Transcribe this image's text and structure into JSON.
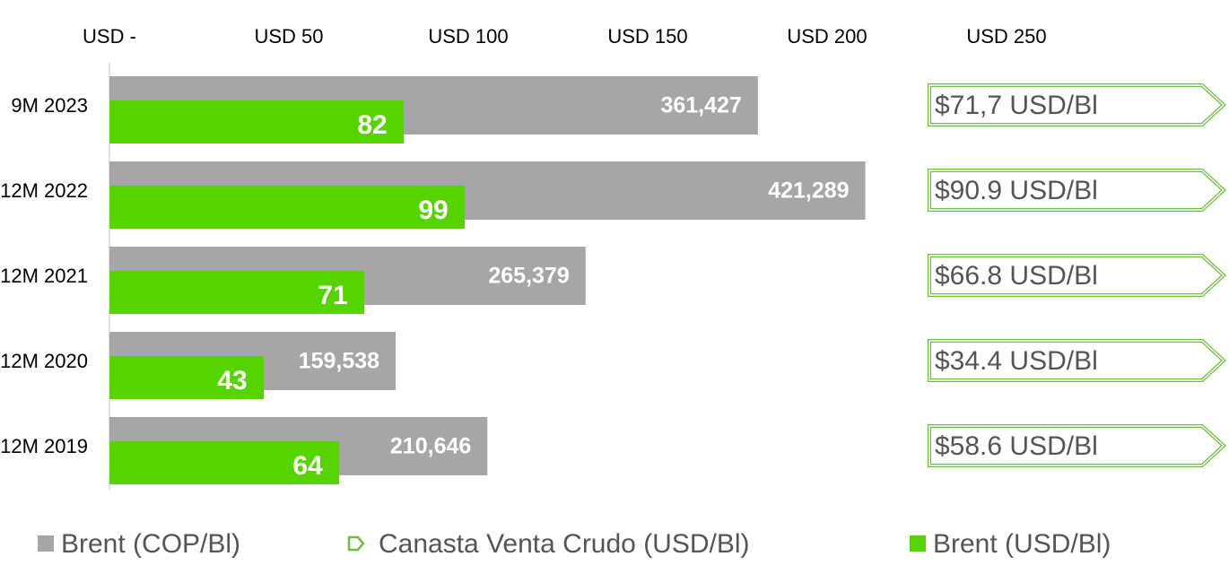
{
  "chart_data": {
    "type": "bar",
    "orientation": "horizontal",
    "categories": [
      "9M 2023",
      "12M 2022",
      "12M 2021",
      "12M 2020",
      "12M 2019"
    ],
    "xlim": [
      0,
      250
    ],
    "xticks": [
      {
        "value": 0,
        "label": "USD -"
      },
      {
        "value": 50,
        "label": "USD 50"
      },
      {
        "value": 100,
        "label": "USD 100"
      },
      {
        "value": 150,
        "label": "USD 150"
      },
      {
        "value": 200,
        "label": "USD 200"
      },
      {
        "value": 250,
        "label": "USD 250"
      }
    ],
    "x2lim": [
      0,
      500000
    ],
    "series": [
      {
        "name": "Brent (COP/Bl)",
        "color": "#a6a6a6",
        "axis": "x2",
        "values": [
          361427,
          421289,
          265379,
          159538,
          210646
        ],
        "value_labels": [
          "361,427",
          "421,289",
          "265,379",
          "159,538",
          "210,646"
        ]
      },
      {
        "name": "Canasta Venta Crudo (USD/Bl)",
        "color": "#6dbf3c",
        "values": [
          71.7,
          90.9,
          66.8,
          34.4,
          58.6
        ],
        "value_labels": [
          "$71,7 USD/Bl",
          "$90.9 USD/Bl",
          "$66.8 USD/Bl",
          "$34.4 USD/Bl",
          "$58.6 USD/Bl"
        ]
      },
      {
        "name": "Brent (USD/Bl)",
        "color": "#55d400",
        "values": [
          82,
          99,
          71,
          43,
          64
        ]
      }
    ],
    "legend": "bottom"
  }
}
